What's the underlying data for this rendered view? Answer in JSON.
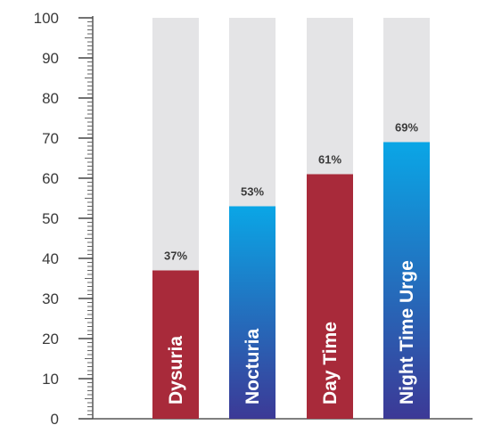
{
  "chart_data": {
    "type": "bar",
    "categories": [
      "Dysuria",
      "Nocturia",
      "Day Time",
      "Night Time Urge"
    ],
    "values": [
      37,
      53,
      61,
      69
    ],
    "data_labels": [
      "37%",
      "53%",
      "61%",
      "69%"
    ],
    "ylim": [
      0,
      100
    ],
    "yticks": [
      0,
      10,
      20,
      30,
      40,
      50,
      60,
      70,
      80,
      90,
      100
    ],
    "background_value": 100,
    "colors": {
      "track": "#e4e4e6",
      "dysuria": "#a82a3a",
      "nocturia": [
        "#0aa6e6",
        "#3c3996"
      ],
      "day_time": "#a82a3a",
      "night_time_urge": [
        "#0aa6e6",
        "#3c3996"
      ]
    },
    "grid": false,
    "legend": "none",
    "title": "",
    "xlabel": "",
    "ylabel": ""
  }
}
